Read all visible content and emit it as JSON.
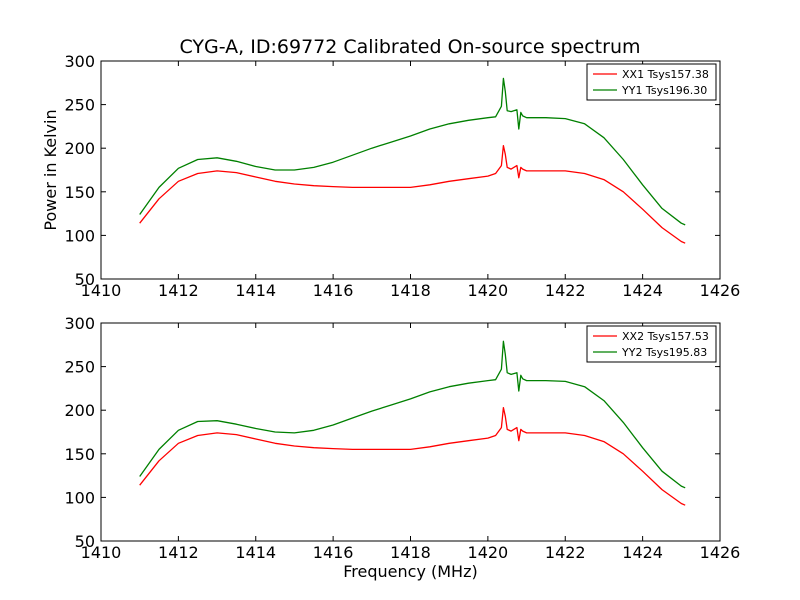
{
  "figure": {
    "title": "CYG-A, ID:69772 Calibrated On-source spectrum"
  },
  "chart_data": [
    {
      "type": "line",
      "title": "CYG-A, ID:69772 Calibrated On-source spectrum",
      "xlabel": "",
      "ylabel": "Power in Kelvin",
      "xlim": [
        1410,
        1426
      ],
      "ylim": [
        50,
        300
      ],
      "x_ticks": [
        1410,
        1412,
        1414,
        1416,
        1418,
        1420,
        1422,
        1424,
        1426
      ],
      "y_ticks": [
        50,
        100,
        150,
        200,
        250,
        300
      ],
      "grid": false,
      "legend_position": "top-right",
      "series": [
        {
          "name": "XX1 Tsys157.38",
          "color": "#ff0000",
          "x": [
            1411.0,
            1411.5,
            1412.0,
            1412.5,
            1413.0,
            1413.5,
            1414.0,
            1414.5,
            1415.0,
            1415.5,
            1416.0,
            1416.5,
            1417.0,
            1417.5,
            1418.0,
            1418.5,
            1419.0,
            1419.5,
            1420.0,
            1420.2,
            1420.35,
            1420.4,
            1420.45,
            1420.5,
            1420.6,
            1420.75,
            1420.8,
            1420.85,
            1420.9,
            1421.0,
            1421.5,
            1422.0,
            1422.5,
            1423.0,
            1423.5,
            1424.0,
            1424.5,
            1425.0,
            1425.1
          ],
          "values": [
            114,
            142,
            162,
            171,
            174,
            172,
            167,
            162,
            159,
            157,
            156,
            155,
            155,
            155,
            155,
            158,
            162,
            165,
            168,
            171,
            180,
            203,
            193,
            178,
            176,
            180,
            166,
            178,
            176,
            174,
            174,
            174,
            171,
            164,
            150,
            130,
            109,
            93,
            91
          ]
        },
        {
          "name": "YY1 Tsys196.30",
          "color": "#008000",
          "x": [
            1411.0,
            1411.5,
            1412.0,
            1412.5,
            1413.0,
            1413.5,
            1414.0,
            1414.5,
            1415.0,
            1415.5,
            1416.0,
            1416.5,
            1417.0,
            1417.5,
            1418.0,
            1418.5,
            1419.0,
            1419.5,
            1420.0,
            1420.2,
            1420.35,
            1420.4,
            1420.45,
            1420.5,
            1420.6,
            1420.75,
            1420.8,
            1420.85,
            1420.9,
            1421.0,
            1421.5,
            1422.0,
            1422.5,
            1423.0,
            1423.5,
            1424.0,
            1424.5,
            1425.0,
            1425.1
          ],
          "values": [
            124,
            155,
            177,
            187,
            189,
            185,
            179,
            175,
            175,
            178,
            184,
            192,
            200,
            207,
            214,
            222,
            228,
            232,
            235,
            236,
            248,
            280,
            265,
            243,
            242,
            244,
            222,
            241,
            237,
            235,
            235,
            234,
            228,
            212,
            187,
            158,
            131,
            114,
            112
          ]
        }
      ]
    },
    {
      "type": "line",
      "title": "",
      "xlabel": "Frequency (MHz)",
      "ylabel": "",
      "xlim": [
        1410,
        1426
      ],
      "ylim": [
        50,
        300
      ],
      "x_ticks": [
        1410,
        1412,
        1414,
        1416,
        1418,
        1420,
        1422,
        1424,
        1426
      ],
      "y_ticks": [
        50,
        100,
        150,
        200,
        250,
        300
      ],
      "grid": false,
      "legend_position": "top-right",
      "series": [
        {
          "name": "XX2 Tsys157.53",
          "color": "#ff0000",
          "x": [
            1411.0,
            1411.5,
            1412.0,
            1412.5,
            1413.0,
            1413.5,
            1414.0,
            1414.5,
            1415.0,
            1415.5,
            1416.0,
            1416.5,
            1417.0,
            1417.5,
            1418.0,
            1418.5,
            1419.0,
            1419.5,
            1420.0,
            1420.2,
            1420.35,
            1420.4,
            1420.45,
            1420.5,
            1420.6,
            1420.75,
            1420.8,
            1420.85,
            1420.9,
            1421.0,
            1421.5,
            1422.0,
            1422.5,
            1423.0,
            1423.5,
            1424.0,
            1424.5,
            1425.0,
            1425.1
          ],
          "values": [
            114,
            142,
            162,
            171,
            174,
            172,
            167,
            162,
            159,
            157,
            156,
            155,
            155,
            155,
            155,
            158,
            162,
            165,
            168,
            171,
            180,
            203,
            193,
            178,
            176,
            180,
            165,
            178,
            176,
            174,
            174,
            174,
            171,
            164,
            150,
            130,
            109,
            93,
            91
          ]
        },
        {
          "name": "YY2 Tsys195.83",
          "color": "#008000",
          "x": [
            1411.0,
            1411.5,
            1412.0,
            1412.5,
            1413.0,
            1413.5,
            1414.0,
            1414.5,
            1415.0,
            1415.5,
            1416.0,
            1416.5,
            1417.0,
            1417.5,
            1418.0,
            1418.5,
            1419.0,
            1419.5,
            1420.0,
            1420.2,
            1420.35,
            1420.4,
            1420.45,
            1420.5,
            1420.6,
            1420.75,
            1420.8,
            1420.85,
            1420.9,
            1421.0,
            1421.5,
            1422.0,
            1422.5,
            1423.0,
            1423.5,
            1424.0,
            1424.5,
            1425.0,
            1425.1
          ],
          "values": [
            124,
            155,
            177,
            187,
            188,
            184,
            179,
            175,
            174,
            177,
            183,
            191,
            199,
            206,
            213,
            221,
            227,
            231,
            234,
            235,
            247,
            279,
            264,
            243,
            241,
            243,
            222,
            240,
            236,
            234,
            234,
            233,
            227,
            211,
            186,
            157,
            130,
            113,
            111
          ]
        }
      ]
    }
  ]
}
